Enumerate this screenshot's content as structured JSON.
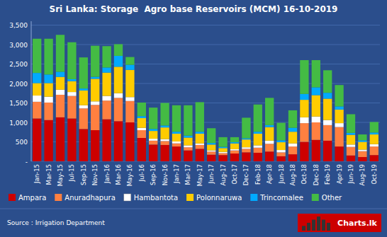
{
  "chart_data": {
    "type": "bar",
    "title": "Sri Lanka: Storage  Agro base Reservoirs (MCM) 16-10-2019",
    "annotations": [
      "Source : Irrigation Department",
      "Charts.lk"
    ],
    "categories": [
      "Jan-15",
      "Mar-15",
      "May-15",
      "Jul-15",
      "Sep-15",
      "Nov-15",
      "Jan-16",
      "Mar-16",
      "May-16",
      "Jul-16",
      "Sep-16",
      "Nov-16",
      "Jan-17",
      "Mar-17",
      "May-17",
      "Jun-17",
      "Aug-17",
      "Oct-17",
      "Dec-17",
      "Feb-18",
      "Apr-18",
      "Jun-18",
      "Aug-18",
      "Oct-18",
      "Dec-18",
      "Feb-19",
      "Apr-19",
      "Jun-19",
      "Aug-19",
      "Oct-19"
    ],
    "series": [
      {
        "name": "Ampara",
        "color": "#cc0000",
        "values": [
          1100,
          1060,
          1130,
          1100,
          830,
          800,
          1080,
          1030,
          1000,
          600,
          430,
          420,
          380,
          280,
          320,
          170,
          160,
          200,
          230,
          220,
          250,
          130,
          180,
          500,
          550,
          530,
          380,
          150,
          110,
          160
        ]
      },
      {
        "name": "Anuradhapura",
        "color": "#ff8040",
        "values": [
          430,
          450,
          580,
          580,
          530,
          650,
          480,
          600,
          550,
          200,
          100,
          100,
          80,
          80,
          100,
          80,
          50,
          80,
          90,
          130,
          200,
          100,
          200,
          480,
          450,
          400,
          500,
          220,
          150,
          220
        ]
      },
      {
        "name": "Hambantota",
        "color": "#ffffff",
        "values": [
          160,
          150,
          130,
          100,
          80,
          90,
          120,
          120,
          100,
          60,
          50,
          50,
          50,
          50,
          40,
          30,
          30,
          30,
          40,
          60,
          80,
          60,
          80,
          150,
          150,
          130,
          100,
          60,
          40,
          60
        ]
      },
      {
        "name": "Polonnaruwa",
        "color": "#ffcc00",
        "values": [
          320,
          350,
          330,
          280,
          380,
          580,
          600,
          680,
          700,
          250,
          200,
          300,
          200,
          200,
          250,
          150,
          100,
          150,
          200,
          300,
          350,
          200,
          300,
          450,
          550,
          550,
          350,
          250,
          200,
          250
        ]
      },
      {
        "name": "Trincomalee",
        "color": "#00aaff",
        "values": [
          260,
          220,
          130,
          50,
          50,
          50,
          130,
          280,
          130,
          50,
          50,
          50,
          50,
          50,
          50,
          40,
          30,
          30,
          30,
          50,
          50,
          50,
          100,
          150,
          200,
          150,
          80,
          50,
          40,
          50
        ]
      },
      {
        "name": "Other",
        "color": "#44bb44",
        "values": [
          880,
          920,
          950,
          950,
          800,
          800,
          550,
          300,
          200,
          350,
          550,
          580,
          680,
          780,
          760,
          380,
          250,
          130,
          530,
          700,
          700,
          450,
          450,
          870,
          700,
          580,
          550,
          480,
          150,
          270
        ]
      }
    ],
    "stacked": true,
    "ylim": [
      0,
      3600
    ],
    "yticks": [
      {
        "value": 0,
        "label": "-"
      },
      500,
      {
        "value": 1000,
        "label": "1,000"
      },
      {
        "value": 1500,
        "label": "1,500"
      },
      {
        "value": 2000,
        "label": "2,000"
      },
      {
        "value": 2500,
        "label": "2,500"
      },
      {
        "value": 3000,
        "label": "3,000"
      },
      {
        "value": 3500,
        "label": "3,500"
      }
    ],
    "grid": true,
    "legend": "bottom"
  }
}
